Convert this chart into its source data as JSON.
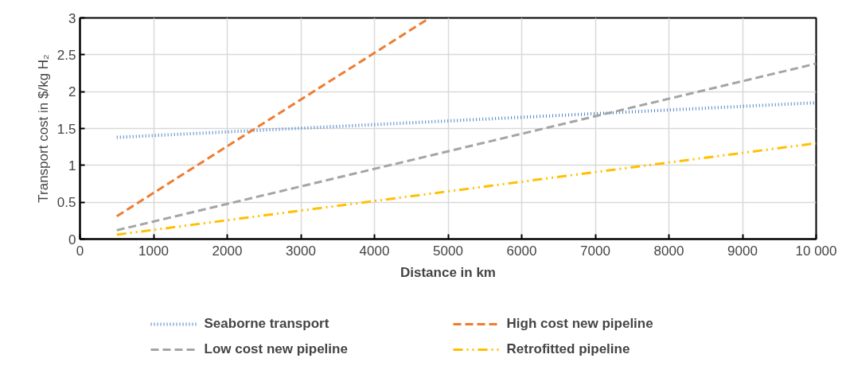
{
  "chart_data": {
    "type": "line",
    "xlabel": "Distance in km",
    "ylabel": "Transport cost in $/kg H₂",
    "xlim": [
      0,
      10000
    ],
    "ylim": [
      0,
      3
    ],
    "xticks": [
      0,
      1000,
      2000,
      3000,
      4000,
      5000,
      6000,
      7000,
      8000,
      9000,
      {
        "value": 10000,
        "label": "10 000"
      }
    ],
    "yticks": [
      0,
      0.5,
      1,
      1.5,
      2,
      2.5,
      3
    ],
    "grid": true,
    "legend": "bottom",
    "marker": "none",
    "series": [
      {
        "name": "Seaborne transport",
        "color": "#4a86c8",
        "line_style": "dotted",
        "x": [
          500,
          10000
        ],
        "values": [
          1.38,
          1.85
        ]
      },
      {
        "name": "High cost new pipeline",
        "color": "#ed7d31",
        "line_style": "dashed",
        "x": [
          500,
          4750
        ],
        "values": [
          0.31,
          3.0
        ]
      },
      {
        "name": "Low cost new pipeline",
        "color": "#a5a5a5",
        "line_style": "dashed",
        "x": [
          500,
          10000
        ],
        "values": [
          0.12,
          2.38
        ]
      },
      {
        "name": "Retrofitted pipeline",
        "color": "#ffc000",
        "line_style": "dashdot",
        "x": [
          500,
          10000
        ],
        "values": [
          0.06,
          1.3
        ]
      }
    ]
  }
}
